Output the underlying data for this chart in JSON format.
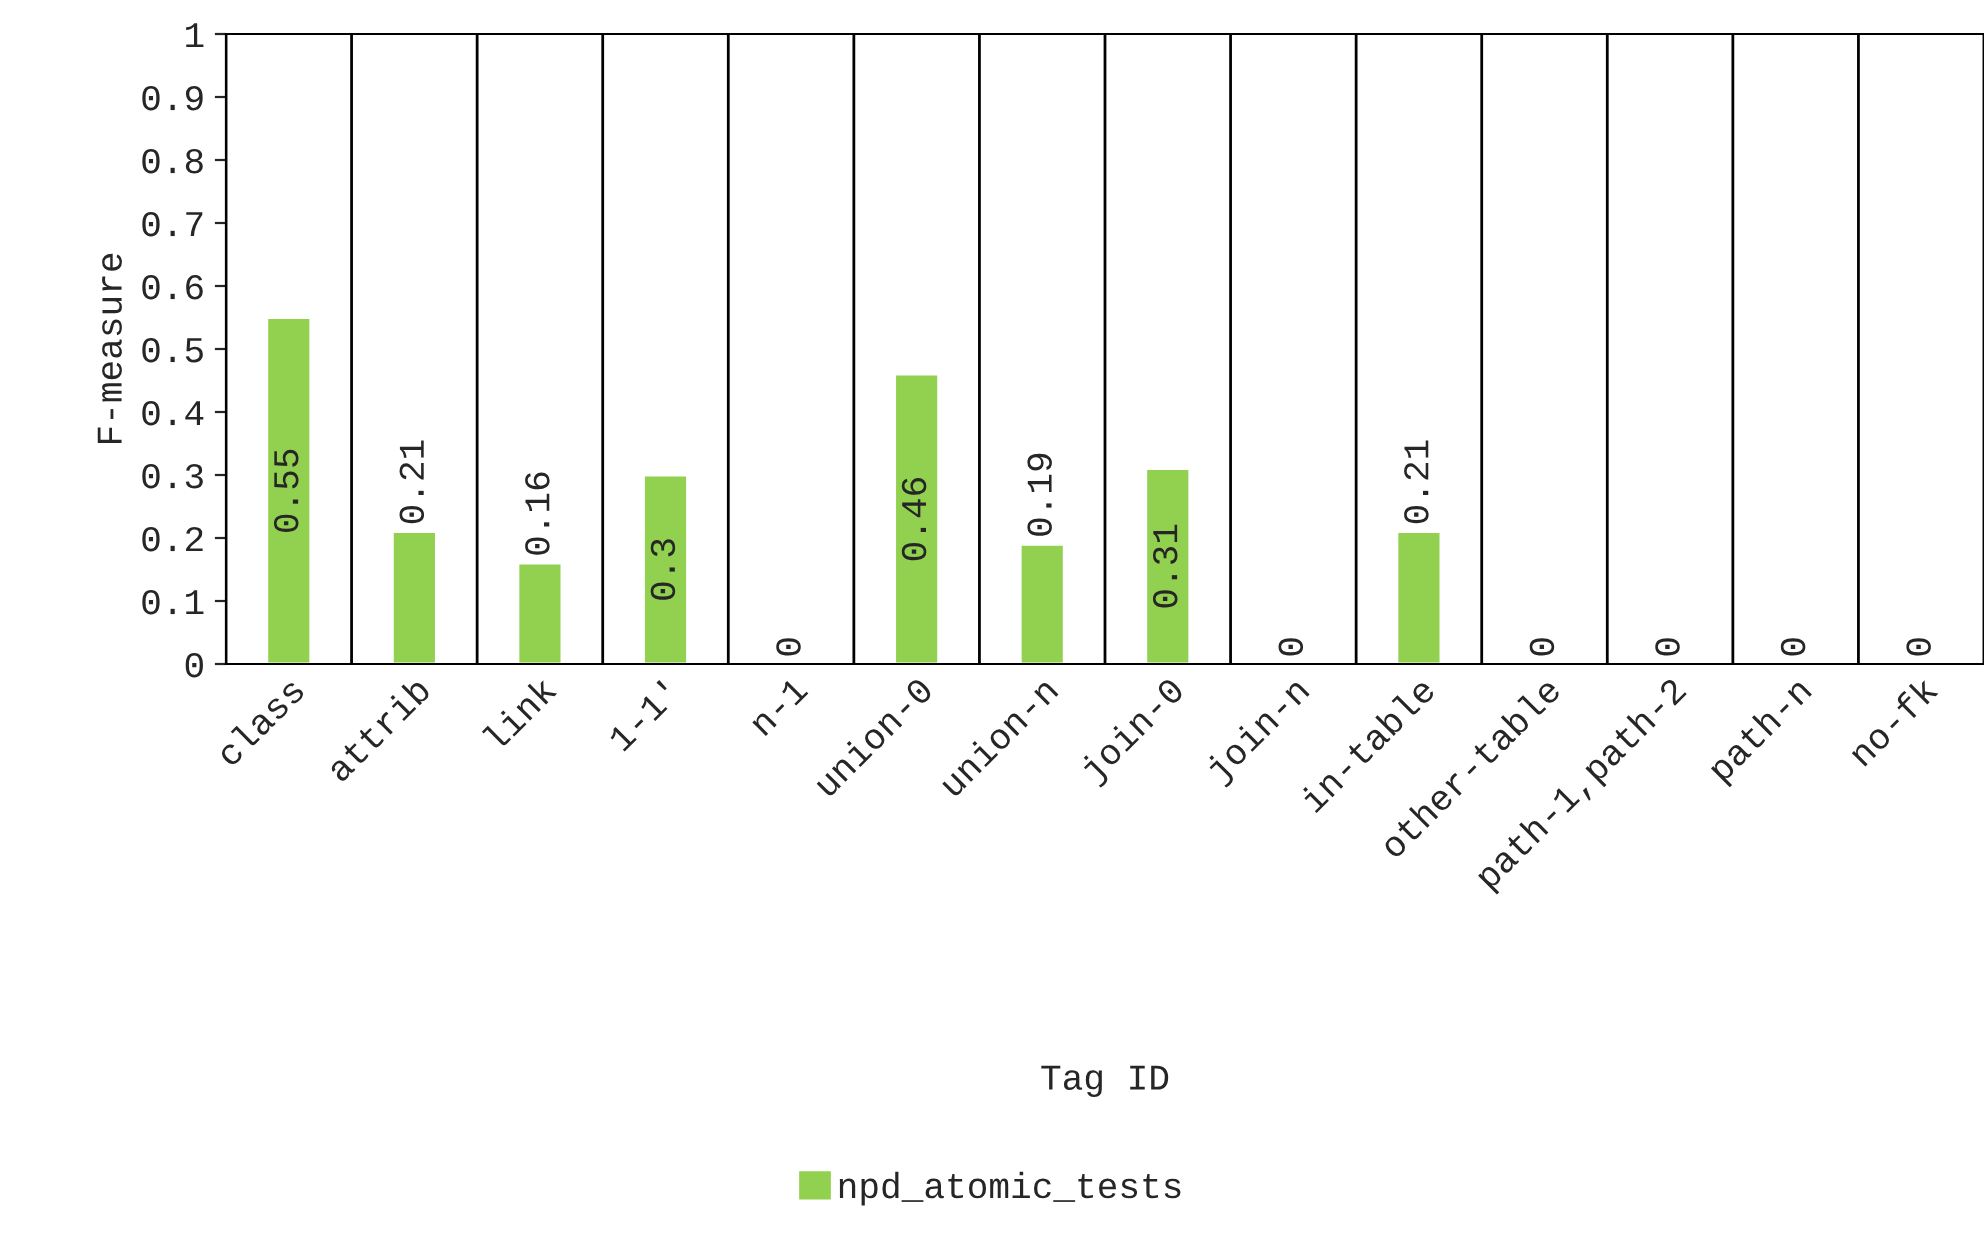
{
  "chart_data": {
    "type": "bar",
    "xlabel": "Tag ID",
    "ylabel": "F-measure",
    "categories": [
      "class",
      "attrib",
      "link",
      "1-1'",
      "n-1",
      "union-0",
      "union-n",
      "join-0",
      "join-n",
      "in-table",
      "other-table",
      "path-1,path-2",
      "path-n",
      "no-fk"
    ],
    "series": [
      {
        "name": "npd_atomic_tests",
        "color": "#92d050",
        "values": [
          0.55,
          0.21,
          0.16,
          0.3,
          0,
          0.46,
          0.19,
          0.31,
          0,
          0.21,
          0,
          0,
          0,
          0
        ]
      }
    ],
    "ylim": [
      0,
      1
    ],
    "yticks": [
      0,
      0.1,
      0.2,
      0.3,
      0.4,
      0.5,
      0.6,
      0.7,
      0.8,
      0.9,
      1
    ],
    "grid": "x",
    "legend": "bottom",
    "data_labels": true
  }
}
